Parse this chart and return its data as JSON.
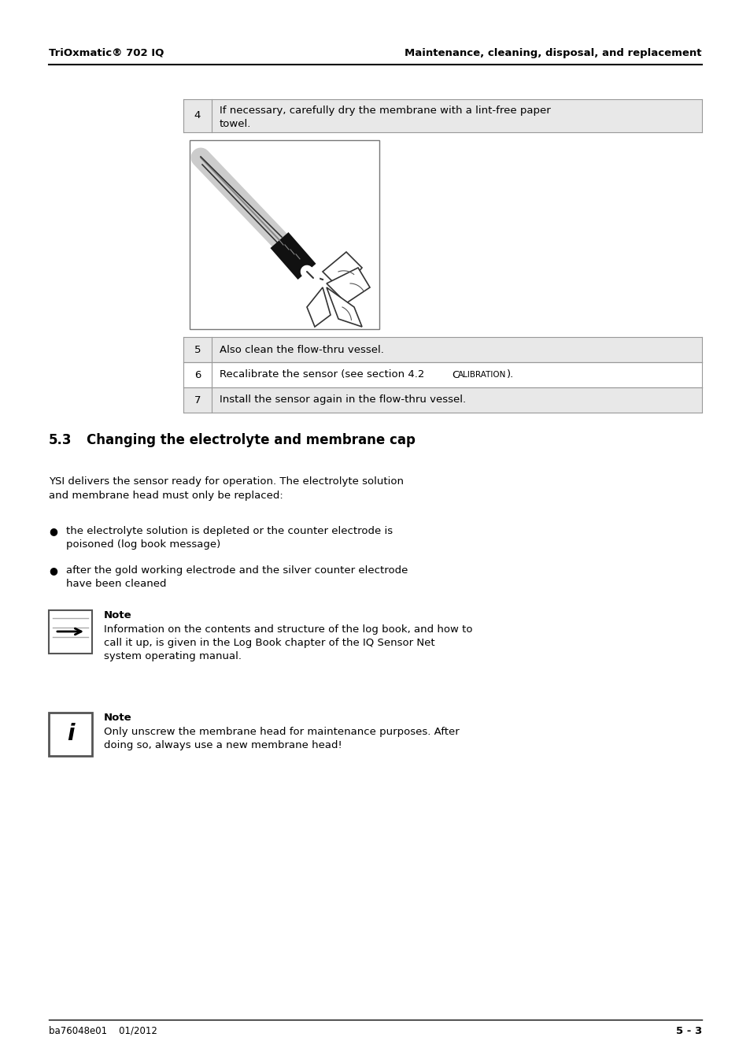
{
  "bg_color": "#ffffff",
  "header_left": "TriOxmatic® 702 IQ",
  "header_right": "Maintenance, cleaning, disposal, and replacement",
  "footer_left": "ba76048e01    01/2012",
  "footer_right": "5 - 3",
  "table_row4": {
    "num": "4",
    "text": "If necessary, carefully dry the membrane with a lint-free paper\ntowel.",
    "shaded": true
  },
  "table_rows567": [
    {
      "num": "5",
      "text": "Also clean the flow-thru vessel.",
      "shaded": true
    },
    {
      "num": "6",
      "text": "Recalibrate the sensor (see section 4.2 Calibration).",
      "shaded": false
    },
    {
      "num": "7",
      "text": "Install the sensor again in the flow-thru vessel.",
      "shaded": true
    }
  ],
  "section_title_num": "5.3",
  "section_title_text": "Changing the electrolyte and membrane cap",
  "body_text1": "YSI delivers the sensor ready for operation. The electrolyte solution\nand membrane head must only be replaced:",
  "bullet1": "the electrolyte solution is depleted or the counter electrode is\npoisoned (log book message)",
  "bullet2": "after the gold working electrode and the silver counter electrode\nhave been cleaned",
  "note1_title": "Note",
  "note1_text": "Information on the contents and structure of the log book, and how to\ncall it up, is given in the Log Book chapter of the IQ Sensor Net\nsystem operating manual.",
  "note2_title": "Note",
  "note2_text": "Only unscrew the membrane head for maintenance purposes. After\ndoing so, always use a new membrane head!",
  "table_shaded_color": "#e8e8e8",
  "text_color": "#000000"
}
